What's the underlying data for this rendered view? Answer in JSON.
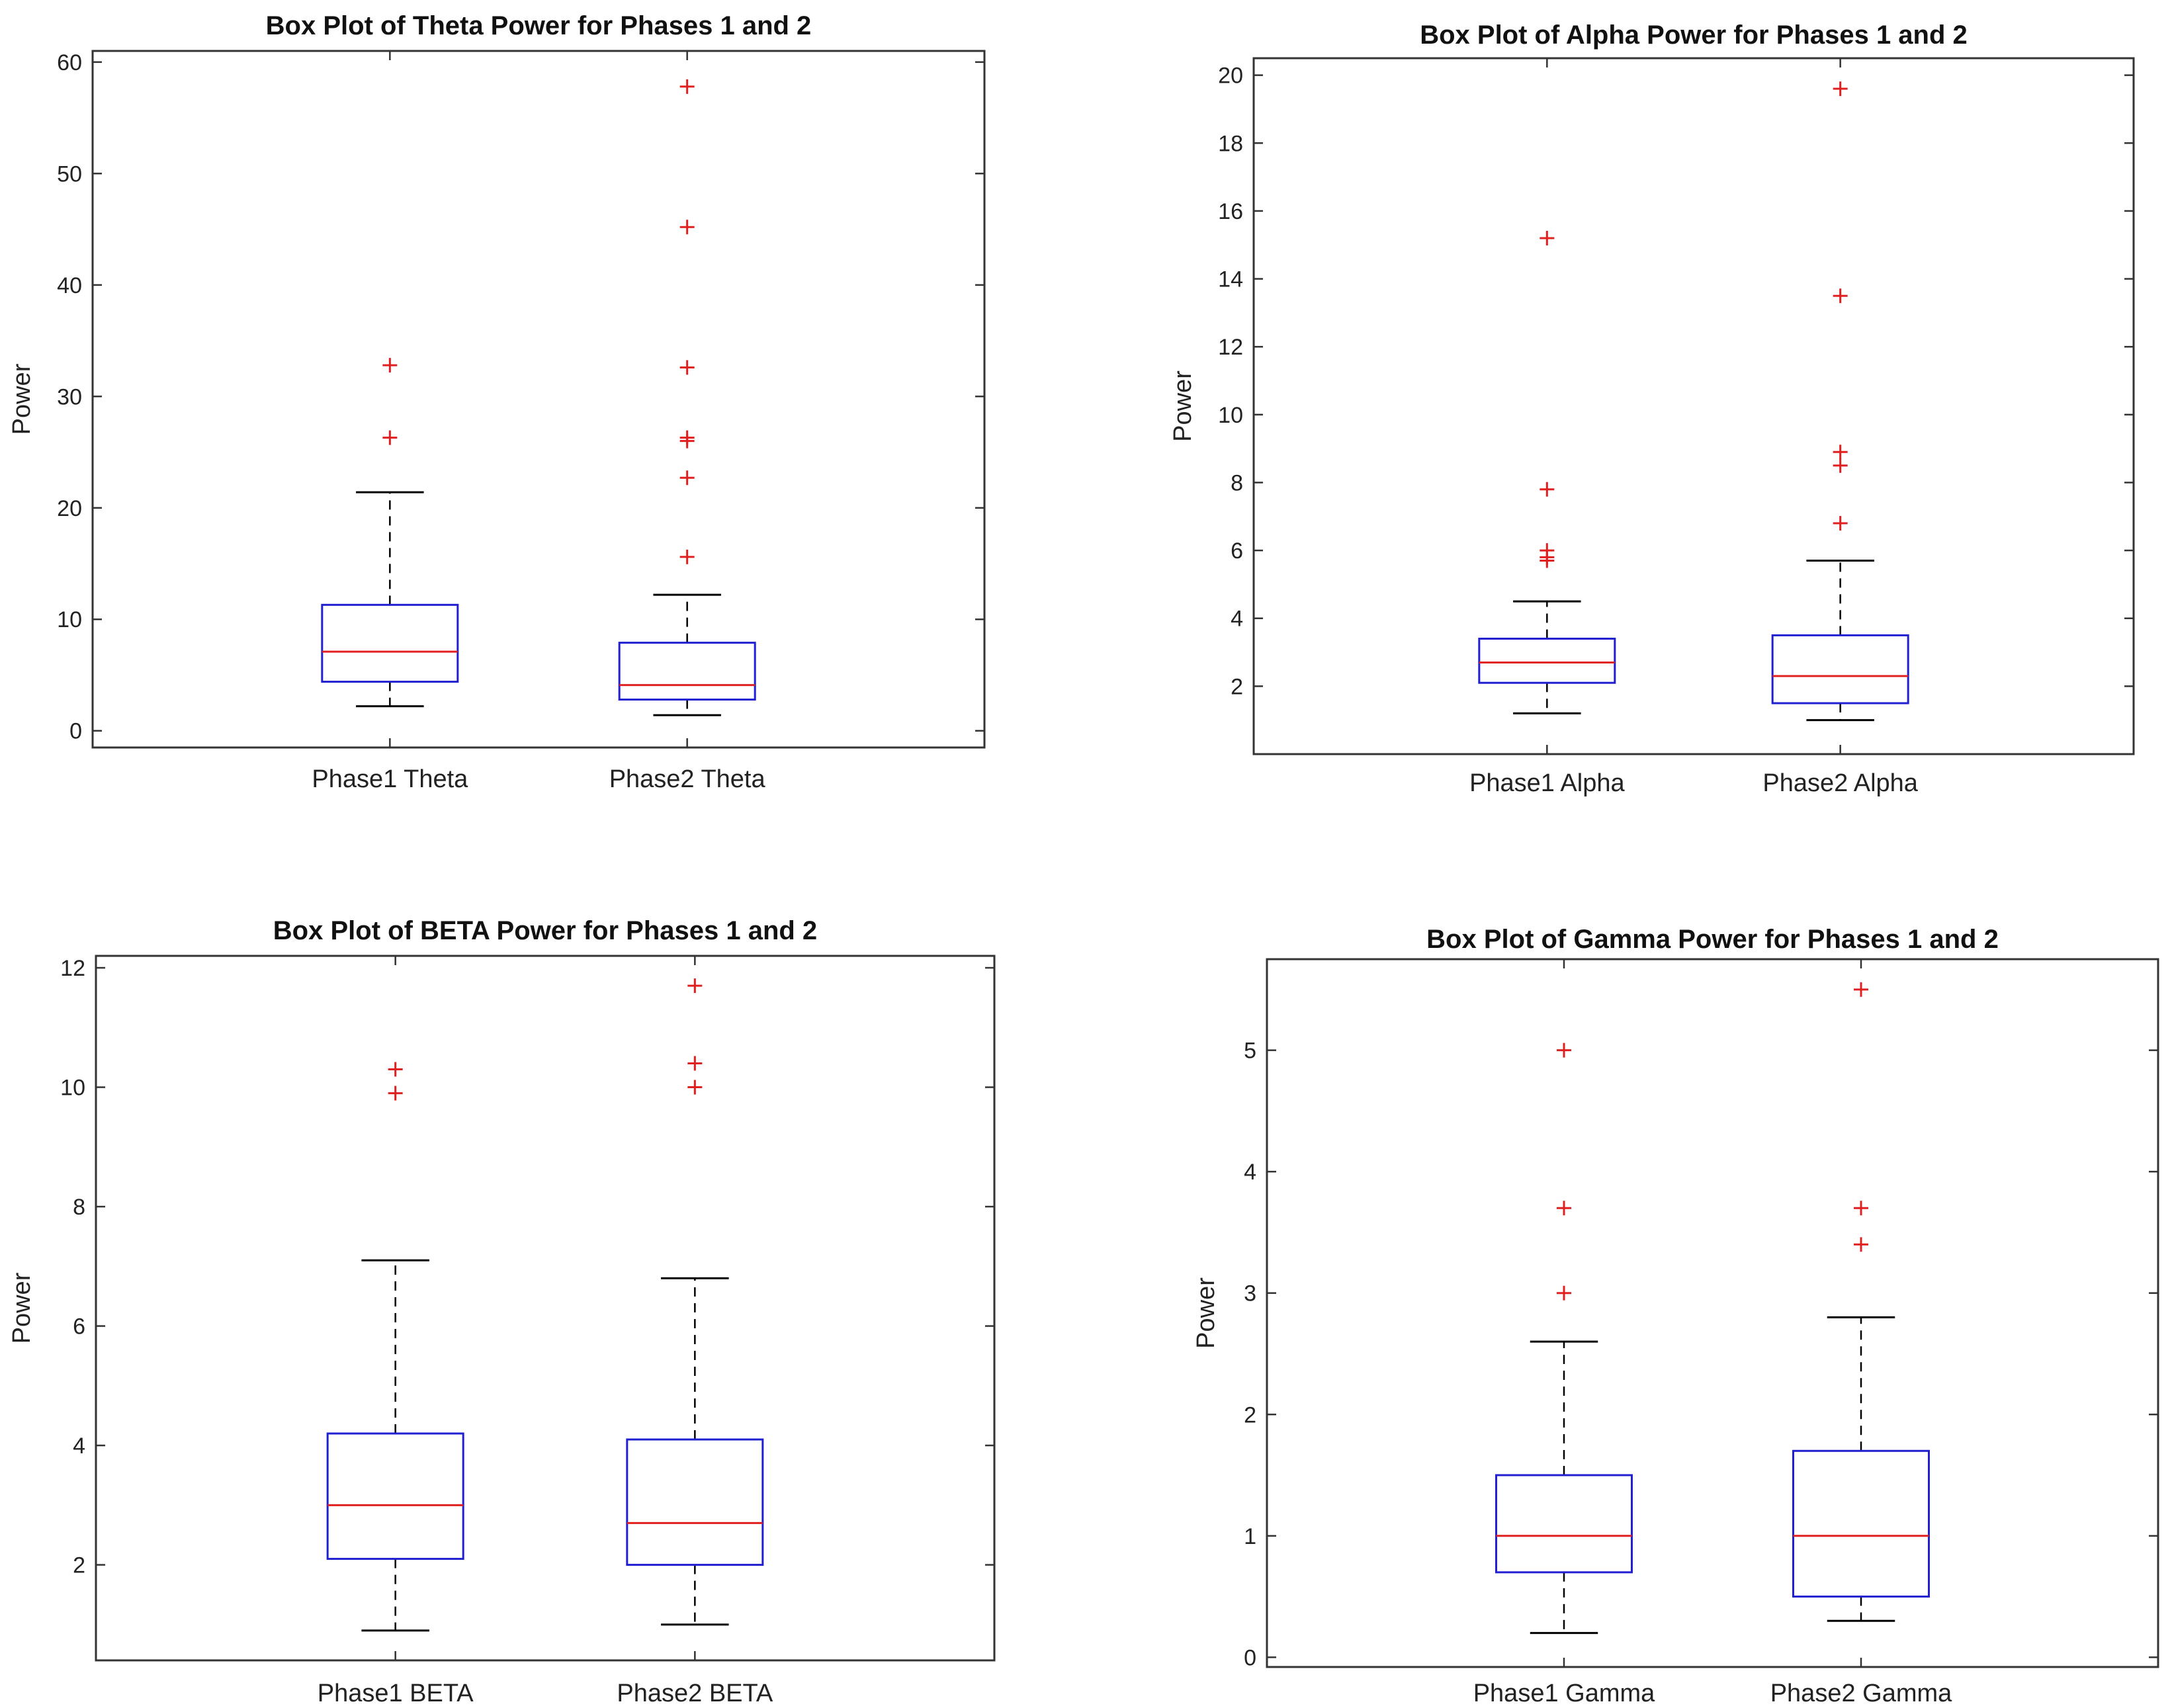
{
  "chart_data": [
    {
      "type": "boxplot",
      "title": "Box Plot of Theta Power for Phases 1 and 2",
      "xlabel": "",
      "ylabel": "Power",
      "ylim": [
        -1.5,
        61
      ],
      "yticks": [
        0,
        10,
        20,
        30,
        40,
        50,
        60
      ],
      "categories": [
        "Phase1 Theta",
        "Phase2 Theta"
      ],
      "boxes": [
        {
          "name": "Phase1 Theta",
          "whisker_low": 2.2,
          "q1": 4.4,
          "median": 7.1,
          "q3": 11.3,
          "whisker_high": 21.4,
          "outliers": [
            26.3,
            32.8
          ]
        },
        {
          "name": "Phase2 Theta",
          "whisker_low": 1.4,
          "q1": 2.8,
          "median": 4.1,
          "q3": 7.9,
          "whisker_high": 12.2,
          "outliers": [
            15.6,
            22.7,
            26.0,
            26.3,
            32.6,
            45.2,
            57.8
          ]
        }
      ]
    },
    {
      "type": "boxplot",
      "title": "Box Plot of Alpha Power for Phases 1 and 2",
      "xlabel": "",
      "ylabel": "Power",
      "ylim": [
        0.0,
        20.5
      ],
      "yticks": [
        2,
        4,
        6,
        8,
        10,
        12,
        14,
        16,
        18,
        20
      ],
      "categories": [
        "Phase1 Alpha",
        "Phase2 Alpha"
      ],
      "boxes": [
        {
          "name": "Phase1 Alpha",
          "whisker_low": 1.2,
          "q1": 2.1,
          "median": 2.7,
          "q3": 3.4,
          "whisker_high": 4.5,
          "outliers": [
            5.7,
            5.8,
            6.0,
            7.8,
            15.2
          ]
        },
        {
          "name": "Phase2 Alpha",
          "whisker_low": 1.0,
          "q1": 1.5,
          "median": 2.3,
          "q3": 3.5,
          "whisker_high": 5.7,
          "outliers": [
            6.8,
            8.5,
            8.9,
            13.5,
            19.6
          ]
        }
      ]
    },
    {
      "type": "boxplot",
      "title": "Box Plot of BETA Power for Phases 1 and 2",
      "xlabel": "",
      "ylabel": "Power",
      "ylim": [
        0.4,
        12.2
      ],
      "yticks": [
        2,
        4,
        6,
        8,
        10,
        12
      ],
      "categories": [
        "Phase1 BETA",
        "Phase2 BETA"
      ],
      "boxes": [
        {
          "name": "Phase1 BETA",
          "whisker_low": 0.9,
          "q1": 2.1,
          "median": 3.0,
          "q3": 4.2,
          "whisker_high": 7.1,
          "outliers": [
            9.9,
            10.3
          ]
        },
        {
          "name": "Phase2 BETA",
          "whisker_low": 1.0,
          "q1": 2.0,
          "median": 2.7,
          "q3": 4.1,
          "whisker_high": 6.8,
          "outliers": [
            10.0,
            10.4,
            11.7
          ]
        }
      ]
    },
    {
      "type": "boxplot",
      "title": "Box Plot of Gamma Power for Phases 1 and 2",
      "xlabel": "",
      "ylabel": "Power",
      "ylim": [
        -0.08,
        5.75
      ],
      "yticks": [
        0,
        1,
        2,
        3,
        4,
        5
      ],
      "categories": [
        "Phase1 Gamma",
        "Phase2 Gamma"
      ],
      "boxes": [
        {
          "name": "Phase1 Gamma",
          "whisker_low": 0.2,
          "q1": 0.7,
          "median": 1.0,
          "q3": 1.5,
          "whisker_high": 2.6,
          "outliers": [
            3.0,
            3.7,
            5.0
          ]
        },
        {
          "name": "Phase2 Gamma",
          "whisker_low": 0.3,
          "q1": 0.5,
          "median": 1.0,
          "q3": 1.7,
          "whisker_high": 2.8,
          "outliers": [
            3.4,
            3.7,
            5.5
          ]
        }
      ]
    }
  ],
  "colors": {
    "box": "#2020d0",
    "median": "#e02020",
    "outlier": "#e02020",
    "whisker": "#000000",
    "axis": "#333333",
    "text": "#222222"
  }
}
